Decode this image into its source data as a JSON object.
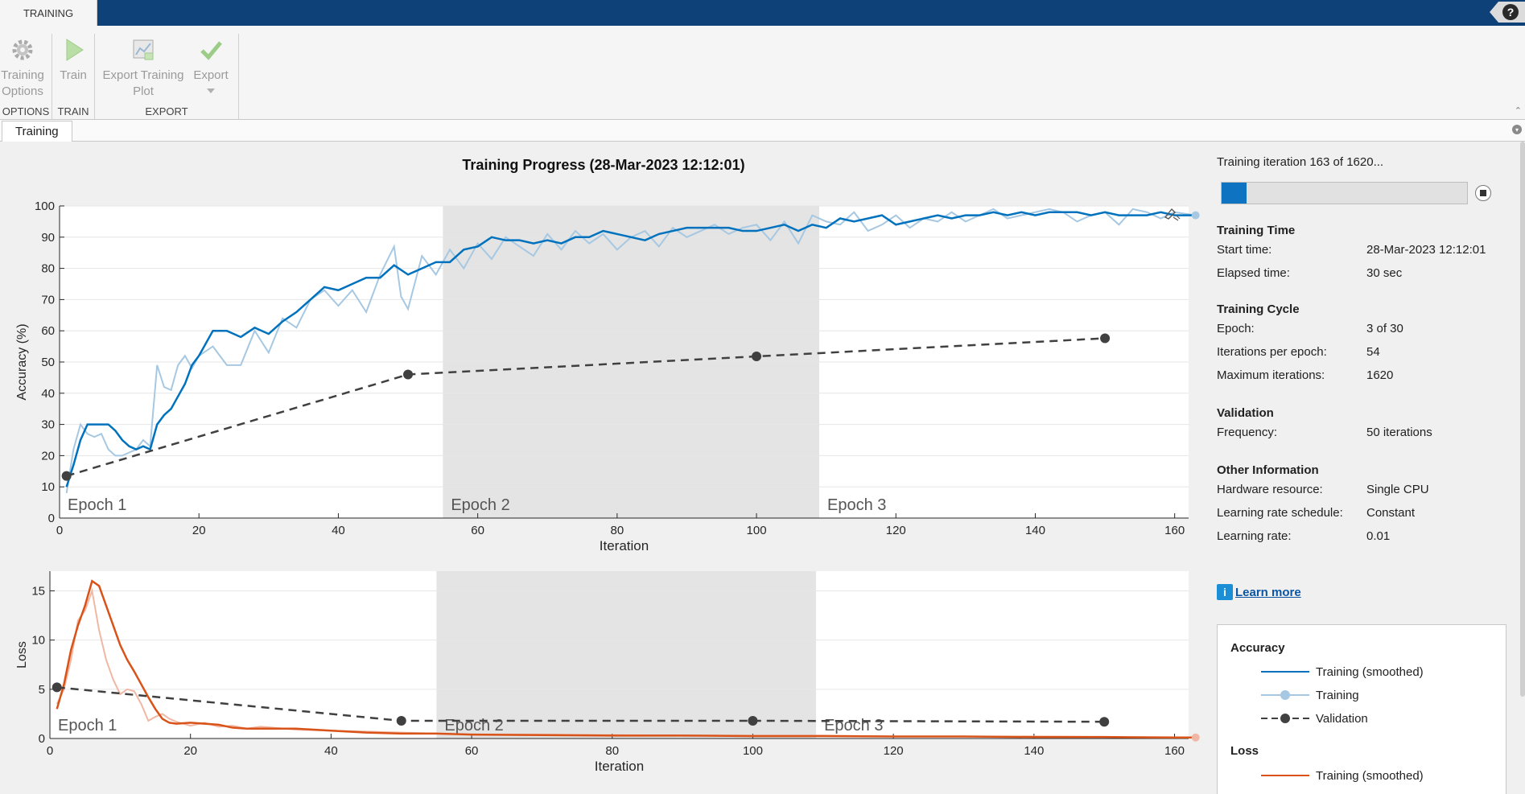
{
  "app": {
    "tab": "TRAINING",
    "help": "?"
  },
  "ribbon": {
    "groups": [
      {
        "label": "OPTIONS",
        "buttons": [
          {
            "label": "Training Options",
            "icon": "gear-icon"
          }
        ]
      },
      {
        "label": "TRAIN",
        "buttons": [
          {
            "label": "Train",
            "icon": "play-icon"
          }
        ]
      },
      {
        "label": "EXPORT",
        "buttons": [
          {
            "label": "Export Training Plot",
            "icon": "export-plot-icon"
          },
          {
            "label": "Export",
            "icon": "checkmark-icon"
          }
        ]
      }
    ]
  },
  "doc_tab": "Training",
  "title": "Training Progress (28-Mar-2023 12:12:01)",
  "progress": {
    "text": "Training iteration 163 of 1620...",
    "fraction": 0.1006
  },
  "info": {
    "training_time": {
      "title": "Training Time",
      "rows": [
        {
          "k": "Start time:",
          "v": "28-Mar-2023 12:12:01"
        },
        {
          "k": "Elapsed time:",
          "v": "30 sec"
        }
      ]
    },
    "training_cycle": {
      "title": "Training Cycle",
      "rows": [
        {
          "k": "Epoch:",
          "v": "3 of 30"
        },
        {
          "k": "Iterations per epoch:",
          "v": "54"
        },
        {
          "k": "Maximum iterations:",
          "v": "1620"
        }
      ]
    },
    "validation": {
      "title": "Validation",
      "rows": [
        {
          "k": "Frequency:",
          "v": "50 iterations"
        }
      ]
    },
    "other": {
      "title": "Other Information",
      "rows": [
        {
          "k": "Hardware resource:",
          "v": "Single CPU"
        },
        {
          "k": "Learning rate schedule:",
          "v": "Constant"
        },
        {
          "k": "Learning rate:",
          "v": "0.01"
        }
      ]
    },
    "learn_more": "Learn more"
  },
  "legend": {
    "accuracy_title": "Accuracy",
    "accuracy_items": [
      "Training (smoothed)",
      "Training",
      "Validation"
    ],
    "loss_title": "Loss",
    "loss_items": [
      "Training (smoothed)"
    ]
  },
  "colors": {
    "acc_smooth": "#0072bd",
    "acc_raw": "#a6c8e2",
    "loss_smooth": "#d95319",
    "loss_raw": "#f0b8a4",
    "validation": "#404040",
    "epoch_shade": "#e4e4e4",
    "accent": "#0e4178"
  },
  "chart_data": [
    {
      "type": "line",
      "title": "Accuracy",
      "xlabel": "Iteration",
      "ylabel": "Accuracy (%)",
      "xlim": [
        0,
        162
      ],
      "ylim": [
        0,
        100
      ],
      "xticks": [
        0,
        20,
        40,
        60,
        80,
        100,
        120,
        140,
        160
      ],
      "yticks": [
        0,
        10,
        20,
        30,
        40,
        50,
        60,
        70,
        80,
        90,
        100
      ],
      "epochs": [
        {
          "label": "Epoch 1",
          "start": 0,
          "end": 54
        },
        {
          "label": "Epoch 2",
          "start": 55,
          "end": 109
        },
        {
          "label": "Epoch 3",
          "start": 109,
          "end": 162
        }
      ],
      "series": [
        {
          "name": "Training (smoothed)",
          "x": [
            1,
            2,
            3,
            4,
            5,
            6,
            7,
            8,
            9,
            10,
            11,
            12,
            13,
            14,
            15,
            16,
            17,
            18,
            19,
            20,
            22,
            24,
            26,
            28,
            30,
            32,
            34,
            36,
            38,
            40,
            42,
            44,
            46,
            48,
            50,
            52,
            54,
            56,
            58,
            60,
            62,
            64,
            66,
            68,
            70,
            72,
            74,
            76,
            78,
            80,
            82,
            84,
            86,
            88,
            90,
            92,
            94,
            96,
            98,
            100,
            102,
            104,
            106,
            108,
            110,
            112,
            114,
            116,
            118,
            120,
            122,
            124,
            126,
            128,
            130,
            132,
            134,
            136,
            138,
            140,
            142,
            144,
            146,
            148,
            150,
            152,
            154,
            156,
            158,
            160,
            163
          ],
          "values": [
            10,
            17,
            25,
            30,
            30,
            30,
            30,
            28,
            25,
            23,
            22,
            23,
            22,
            30,
            33,
            35,
            39,
            43,
            49,
            52,
            60,
            60,
            58,
            61,
            59,
            63,
            66,
            70,
            74,
            73,
            75,
            77,
            77,
            81,
            78,
            80,
            82,
            82,
            86,
            87,
            90,
            89,
            89,
            88,
            89,
            88,
            90,
            90,
            92,
            91,
            90,
            89,
            91,
            92,
            93,
            93,
            93,
            93,
            92,
            92,
            93,
            94,
            92,
            94,
            93,
            96,
            95,
            96,
            97,
            94,
            95,
            96,
            97,
            96,
            97,
            97,
            98,
            97,
            98,
            97,
            98,
            98,
            98,
            97,
            98,
            97,
            97,
            97,
            98,
            97,
            97
          ]
        },
        {
          "name": "Training",
          "x": [
            1,
            2,
            3,
            4,
            5,
            6,
            7,
            8,
            9,
            10,
            11,
            12,
            13,
            14,
            15,
            16,
            17,
            18,
            19,
            20,
            22,
            24,
            26,
            28,
            30,
            32,
            34,
            36,
            38,
            40,
            42,
            44,
            46,
            48,
            49,
            50,
            52,
            54,
            56,
            58,
            60,
            62,
            64,
            66,
            68,
            70,
            72,
            74,
            76,
            78,
            80,
            82,
            84,
            86,
            88,
            90,
            92,
            94,
            96,
            98,
            100,
            102,
            104,
            106,
            108,
            110,
            112,
            114,
            116,
            118,
            120,
            122,
            124,
            126,
            128,
            130,
            132,
            134,
            136,
            138,
            140,
            142,
            144,
            146,
            148,
            150,
            152,
            154,
            156,
            158,
            160,
            163
          ],
          "values": [
            8,
            22,
            30,
            27,
            26,
            27,
            22,
            20,
            20,
            21,
            22,
            25,
            23,
            49,
            42,
            41,
            49,
            52,
            48,
            52,
            55,
            49,
            49,
            60,
            53,
            64,
            61,
            70,
            73,
            68,
            73,
            66,
            78,
            87,
            71,
            67,
            84,
            78,
            86,
            80,
            88,
            83,
            90,
            87,
            84,
            91,
            86,
            92,
            88,
            91,
            86,
            90,
            92,
            87,
            93,
            90,
            92,
            94,
            91,
            93,
            94,
            89,
            95,
            88,
            97,
            95,
            94,
            98,
            92,
            94,
            97,
            93,
            96,
            95,
            98,
            95,
            97,
            99,
            96,
            97,
            98,
            99,
            98,
            95,
            97,
            98,
            94,
            99,
            98,
            96,
            98,
            97
          ]
        },
        {
          "name": "Validation",
          "x": [
            1,
            50,
            100,
            150
          ],
          "values": [
            13.5,
            46,
            51.8,
            57.6
          ]
        }
      ]
    },
    {
      "type": "line",
      "title": "Loss",
      "xlabel": "Iteration",
      "ylabel": "Loss",
      "xlim": [
        0,
        162
      ],
      "ylim": [
        0,
        17
      ],
      "xticks": [
        0,
        20,
        40,
        60,
        80,
        100,
        120,
        140,
        160
      ],
      "yticks": [
        0,
        5,
        10,
        15
      ],
      "epochs": [
        {
          "label": "Epoch 1",
          "start": 0,
          "end": 54
        },
        {
          "label": "Epoch 2",
          "start": 55,
          "end": 109
        },
        {
          "label": "Epoch 3",
          "start": 109,
          "end": 162
        }
      ],
      "series": [
        {
          "name": "Training (smoothed)",
          "x": [
            1,
            2,
            3,
            4,
            5,
            6,
            7,
            8,
            9,
            10,
            11,
            12,
            13,
            14,
            15,
            16,
            17,
            18,
            20,
            22,
            24,
            26,
            28,
            30,
            35,
            40,
            45,
            50,
            55,
            60,
            70,
            80,
            90,
            100,
            110,
            120,
            130,
            140,
            150,
            160,
            163
          ],
          "values": [
            3,
            5.5,
            9,
            11.5,
            13.5,
            16,
            15.5,
            13.5,
            11.5,
            9.5,
            8,
            6.8,
            5.5,
            4.2,
            3,
            2,
            1.6,
            1.5,
            1.6,
            1.5,
            1.4,
            1.1,
            1.0,
            1.0,
            1.0,
            0.8,
            0.6,
            0.5,
            0.5,
            0.4,
            0.35,
            0.3,
            0.3,
            0.25,
            0.25,
            0.2,
            0.2,
            0.15,
            0.15,
            0.1,
            0.1
          ]
        },
        {
          "name": "Training",
          "x": [
            1,
            2,
            3,
            4,
            5,
            6,
            7,
            8,
            9,
            10,
            11,
            12,
            13,
            14,
            15,
            16,
            17,
            18,
            20,
            22,
            24,
            26,
            28,
            30,
            35,
            40,
            45,
            50,
            55,
            60,
            70,
            80,
            90,
            100,
            110,
            120,
            130,
            140,
            150,
            160,
            163
          ],
          "values": [
            3.5,
            5,
            8,
            12,
            13,
            15,
            11,
            8,
            6,
            4.5,
            5,
            4.8,
            3.5,
            1.8,
            2.2,
            2.5,
            2,
            1.7,
            1.3,
            1.6,
            1.2,
            1.3,
            1.0,
            1.2,
            0.9,
            0.8,
            0.7,
            0.6,
            0.5,
            0.4,
            0.4,
            0.35,
            0.3,
            0.3,
            0.3,
            0.2,
            0.2,
            0.2,
            0.15,
            0.1,
            0.1
          ]
        },
        {
          "name": "Validation",
          "x": [
            1,
            50,
            100,
            150
          ],
          "values": [
            5.2,
            1.8,
            1.8,
            1.7
          ]
        }
      ]
    }
  ]
}
